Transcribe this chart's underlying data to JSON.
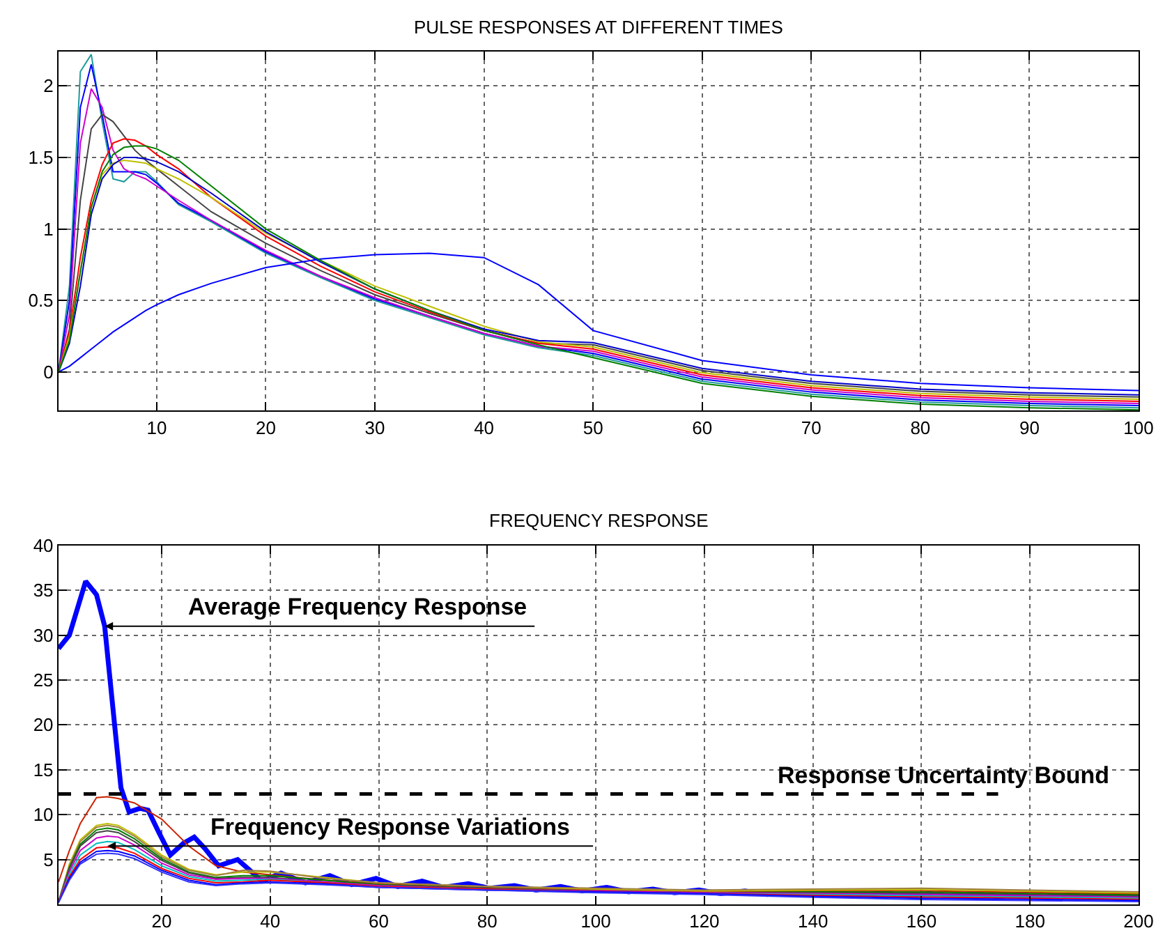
{
  "chart_data": [
    {
      "type": "line",
      "title": "PULSE RESPONSES AT DIFFERENT TIMES",
      "x": [
        1,
        2,
        3,
        4,
        5,
        6,
        7,
        8,
        9,
        10,
        12,
        15,
        20,
        25,
        30,
        35,
        40,
        45,
        50,
        60,
        70,
        80,
        90,
        100
      ],
      "series": [
        {
          "color": "#1f9a9a",
          "values": [
            0,
            0.6,
            2.1,
            2.22,
            1.75,
            1.35,
            1.33,
            1.4,
            1.4,
            1.33,
            1.17,
            1.05,
            0.83,
            0.66,
            0.5,
            0.38,
            0.26,
            0.17,
            0.115,
            -0.065,
            -0.155,
            -0.21,
            -0.235,
            -0.25
          ]
        },
        {
          "color": "#0000ff",
          "values": [
            0,
            0.5,
            1.85,
            2.15,
            1.8,
            1.4,
            1.4,
            1.4,
            1.38,
            1.32,
            1.18,
            1.06,
            0.84,
            0.67,
            0.51,
            0.39,
            0.27,
            0.18,
            0.13,
            -0.05,
            -0.14,
            -0.195,
            -0.22,
            -0.235
          ]
        },
        {
          "color": "#cc00cc",
          "values": [
            0,
            0.4,
            1.6,
            1.98,
            1.85,
            1.55,
            1.42,
            1.38,
            1.35,
            1.3,
            1.2,
            1.06,
            0.85,
            0.67,
            0.52,
            0.39,
            0.27,
            0.18,
            0.145,
            -0.035,
            -0.125,
            -0.18,
            -0.205,
            -0.22
          ]
        },
        {
          "color": "#444444",
          "values": [
            0,
            0.3,
            1.2,
            1.7,
            1.8,
            1.75,
            1.65,
            1.55,
            1.48,
            1.42,
            1.3,
            1.12,
            0.9,
            0.71,
            0.54,
            0.41,
            0.29,
            0.2,
            0.19,
            0.01,
            -0.08,
            -0.135,
            -0.16,
            -0.175
          ]
        },
        {
          "color": "#ff0000",
          "values": [
            0,
            0.28,
            0.8,
            1.2,
            1.45,
            1.6,
            1.63,
            1.62,
            1.58,
            1.52,
            1.42,
            1.22,
            0.95,
            0.74,
            0.56,
            0.42,
            0.29,
            0.2,
            0.16,
            -0.02,
            -0.11,
            -0.165,
            -0.19,
            -0.205
          ]
        },
        {
          "color": "#bfbf00",
          "values": [
            0,
            0.25,
            0.7,
            1.15,
            1.38,
            1.46,
            1.48,
            1.47,
            1.46,
            1.42,
            1.35,
            1.22,
            0.97,
            0.78,
            0.6,
            0.46,
            0.32,
            0.21,
            0.175,
            -0.005,
            -0.095,
            -0.15,
            -0.175,
            -0.19
          ]
        },
        {
          "color": "#0000c8",
          "values": [
            0,
            0.2,
            0.6,
            1.1,
            1.35,
            1.45,
            1.5,
            1.5,
            1.49,
            1.47,
            1.4,
            1.25,
            0.98,
            0.77,
            0.58,
            0.43,
            0.3,
            0.22,
            0.205,
            0.025,
            -0.065,
            -0.12,
            -0.145,
            -0.16
          ]
        },
        {
          "color": "#0000ff",
          "values": [
            0,
            0.04,
            0.1,
            0.16,
            0.22,
            0.28,
            0.33,
            0.38,
            0.43,
            0.47,
            0.54,
            0.62,
            0.73,
            0.79,
            0.82,
            0.83,
            0.8,
            0.61,
            0.29,
            0.08,
            -0.02,
            -0.08,
            -0.11,
            -0.13
          ]
        },
        {
          "color": "#008000",
          "values": [
            0,
            0.22,
            0.7,
            1.15,
            1.4,
            1.52,
            1.57,
            1.58,
            1.58,
            1.56,
            1.48,
            1.3,
            1.0,
            0.78,
            0.58,
            0.43,
            0.29,
            0.19,
            0.1,
            -0.08,
            -0.17,
            -0.225,
            -0.25,
            -0.265
          ]
        }
      ],
      "xlim": [
        1,
        100
      ],
      "xticks": [
        10,
        20,
        30,
        40,
        50,
        60,
        70,
        80,
        90,
        100
      ],
      "ylim": [
        -0.27,
        2.24
      ],
      "yticks": [
        0,
        0.5,
        1,
        1.5,
        2
      ],
      "grid": true
    },
    {
      "type": "line",
      "title": "FREQUENCY RESPONSE",
      "x": [
        1,
        3,
        5,
        8,
        10,
        12,
        15,
        20,
        25,
        30,
        35,
        40,
        50,
        60,
        80,
        100,
        120,
        140,
        160,
        180,
        200
      ],
      "series": [
        {
          "color": "#0000ff",
          "x": [
            1,
            3,
            6,
            8,
            9.5,
            11,
            12.5,
            14,
            16,
            17.5,
            19.5,
            21.6,
            24,
            26,
            28,
            30.5,
            34,
            38.5,
            42,
            46.5,
            51,
            55,
            59.5,
            63.5,
            68,
            72,
            76.5,
            80.5,
            85,
            89,
            93.5,
            97.5,
            102,
            106,
            110.5,
            114.5,
            119,
            123,
            127.5,
            131.5,
            136,
            140,
            144.5,
            148.5,
            153,
            157,
            161.5,
            165.5,
            170,
            174,
            178.5,
            182.5,
            187,
            191,
            195.5,
            200
          ],
          "values": [
            28.5,
            30,
            36,
            34.5,
            31,
            22,
            13,
            10.3,
            10.7,
            10.5,
            8,
            5.5,
            6.8,
            7.5,
            6.2,
            4.3,
            5,
            2.6,
            3.5,
            2.4,
            3.2,
            2.2,
            2.9,
            2.0,
            2.6,
            1.9,
            2.3,
            1.8,
            2.1,
            1.6,
            2.0,
            1.5,
            1.9,
            1.4,
            1.7,
            1.3,
            1.6,
            1.2,
            1.5,
            1.1,
            1.4,
            1.1,
            1.3,
            1.0,
            1.3,
            1.0,
            1.2,
            0.9,
            1.2,
            0.9,
            1.1,
            0.8,
            1.1,
            0.8,
            1.0,
            0.8
          ]
        },
        {
          "color": "#cc2200",
          "values": [
            2.5,
            6,
            9,
            11.9,
            12,
            11.8,
            11.3,
            9.5,
            6.5,
            4.3,
            3.6,
            3.3,
            2.7,
            2.3,
            1.9,
            1.6,
            1.4,
            1.5,
            1.52,
            1.34,
            1.16
          ]
        },
        {
          "color": "#bfbf00",
          "values": [
            0.3,
            4.5,
            7.2,
            8.8,
            9.0,
            8.8,
            7.8,
            5.5,
            3.9,
            3.3,
            3.6,
            3.6,
            3.0,
            2.4,
            2.0,
            1.7,
            1.5,
            1.6,
            1.66,
            1.47,
            1.28
          ]
        },
        {
          "color": "#a08040",
          "values": [
            0.3,
            4.3,
            7.0,
            8.6,
            8.8,
            8.6,
            7.6,
            5.3,
            3.8,
            3.2,
            3.8,
            3.7,
            2.9,
            2.4,
            2.0,
            1.8,
            1.6,
            1.7,
            1.8,
            1.6,
            1.4
          ]
        },
        {
          "color": "#008000",
          "values": [
            0.3,
            4.1,
            6.7,
            8.3,
            8.5,
            8.3,
            7.3,
            5.1,
            3.6,
            3.0,
            3.2,
            3.2,
            2.7,
            2.2,
            1.8,
            1.5,
            1.3,
            1.4,
            1.38,
            1.21,
            1.04
          ]
        },
        {
          "color": "#444444",
          "values": [
            0.3,
            4.0,
            6.5,
            8.0,
            8.2,
            8.0,
            7.0,
            4.9,
            3.5,
            2.9,
            3.0,
            3.0,
            2.5,
            2.1,
            1.8,
            1.5,
            1.3,
            1.3,
            1.24,
            1.08,
            0.92
          ]
        },
        {
          "color": "#cc00cc",
          "values": [
            0.3,
            3.7,
            6.0,
            7.4,
            7.6,
            7.5,
            6.6,
            4.6,
            3.3,
            2.8,
            2.9,
            2.9,
            2.5,
            2.1,
            1.7,
            1.5,
            1.3,
            1.2,
            1.1,
            0.95,
            0.8
          ]
        },
        {
          "color": "#00bfbf",
          "values": [
            0.3,
            3.4,
            5.5,
            6.8,
            7.0,
            6.9,
            6.1,
            4.3,
            3.1,
            2.6,
            2.7,
            2.8,
            2.4,
            2.0,
            1.7,
            1.4,
            1.2,
            1.1,
            0.96,
            0.82,
            0.68
          ]
        },
        {
          "color": "#ff0000",
          "values": [
            0.3,
            3.1,
            5.0,
            6.3,
            6.4,
            6.3,
            5.7,
            4.0,
            2.9,
            2.4,
            2.5,
            2.7,
            2.4,
            2.0,
            1.7,
            1.4,
            1.2,
            1.0,
            0.82,
            0.69,
            0.56
          ]
        },
        {
          "color": "#0000ff",
          "values": [
            0.2,
            2.9,
            4.7,
            5.9,
            6.0,
            5.9,
            5.4,
            3.8,
            2.7,
            2.2,
            2.4,
            2.5,
            2.3,
            1.9,
            1.6,
            1.4,
            1.2,
            0.9,
            0.68,
            0.56,
            0.44
          ]
        },
        {
          "color": "#3030ff",
          "values": [
            0.2,
            2.7,
            4.5,
            5.6,
            5.7,
            5.6,
            5.1,
            3.6,
            2.5,
            2.1,
            2.3,
            2.4,
            2.2,
            1.9,
            1.6,
            1.3,
            1.1,
            0.8,
            0.54,
            0.43,
            0.32
          ]
        }
      ],
      "annotations": [
        {
          "text": "Average Frequency Response",
          "x": 9.5,
          "y": 31
        },
        {
          "text": "Frequency Response Variations",
          "x": 10,
          "y": 6.5
        }
      ],
      "ref_lines": [
        {
          "axis": "y",
          "value": 12.3,
          "label": "Response Uncertainty Bound",
          "color": "#000000",
          "line_style": "dashed"
        }
      ],
      "xlim": [
        1,
        200
      ],
      "xticks": [
        20,
        40,
        60,
        80,
        100,
        120,
        140,
        160,
        180,
        200
      ],
      "ylim": [
        0,
        40
      ],
      "yticks": [
        5,
        10,
        15,
        20,
        25,
        30,
        35,
        40
      ],
      "grid": true
    }
  ]
}
